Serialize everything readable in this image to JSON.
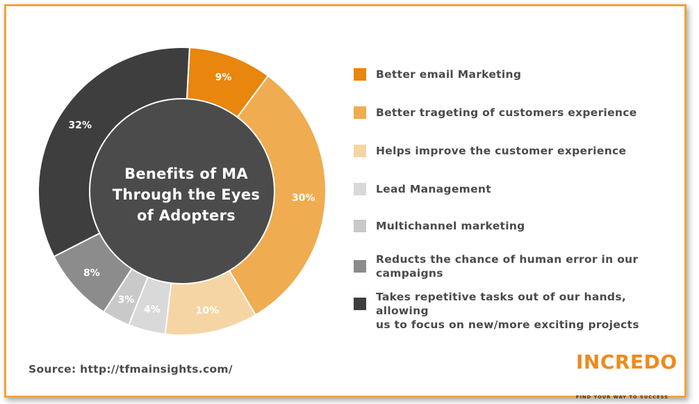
{
  "chart_data": {
    "type": "pie",
    "title": "Benefits of MA Through the Eyes of Adopters",
    "title_lines": [
      "Benefits of MA",
      "Through the Eyes",
      "of Adopters"
    ],
    "slices": [
      {
        "label": "Better email Marketing",
        "value": 9,
        "display": "9%",
        "color": "#e8860e"
      },
      {
        "label": "Better trageting of customers experience",
        "value": 30,
        "display": "30%",
        "color": "#efac50"
      },
      {
        "label": "Helps improve the customer experience",
        "value": 10,
        "display": "10%",
        "color": "#f6d5a4"
      },
      {
        "label": "Lead Management",
        "value": 4,
        "display": "4%",
        "color": "#d9d9d9"
      },
      {
        "label": "Multichannel marketing",
        "value": 3,
        "display": "3%",
        "color": "#c9c9c9"
      },
      {
        "label": "Reducts the chance of human error in our campaigns",
        "value": 8,
        "display": "8%",
        "color": "#8c8c8c"
      },
      {
        "label": "Takes repetitive tasks out of our hands, allowing us to focus on new/more exciting projects",
        "value": 32,
        "display": "32%",
        "color": "#3e3e3e"
      }
    ],
    "legend_position": "right"
  },
  "legend_lines": [
    [
      "Better email Marketing"
    ],
    [
      "Better trageting of customers experience"
    ],
    [
      "Helps improve the customer experience"
    ],
    [
      "Lead Management"
    ],
    [
      "Multichannel marketing"
    ],
    [
      "Reducts the chance of human error in our",
      "campaigns"
    ],
    [
      "Takes repetitive tasks out of our hands, allowing",
      "us to focus on new/more exciting projects"
    ]
  ],
  "source": "Source: http://tfmainsights.com/",
  "logo": {
    "word": "INCREDO",
    "tagline": "FIND YOUR WAY TO SUCCESS"
  },
  "colors": {
    "accent": "#f2a33a",
    "center": "#4b4b4b"
  }
}
